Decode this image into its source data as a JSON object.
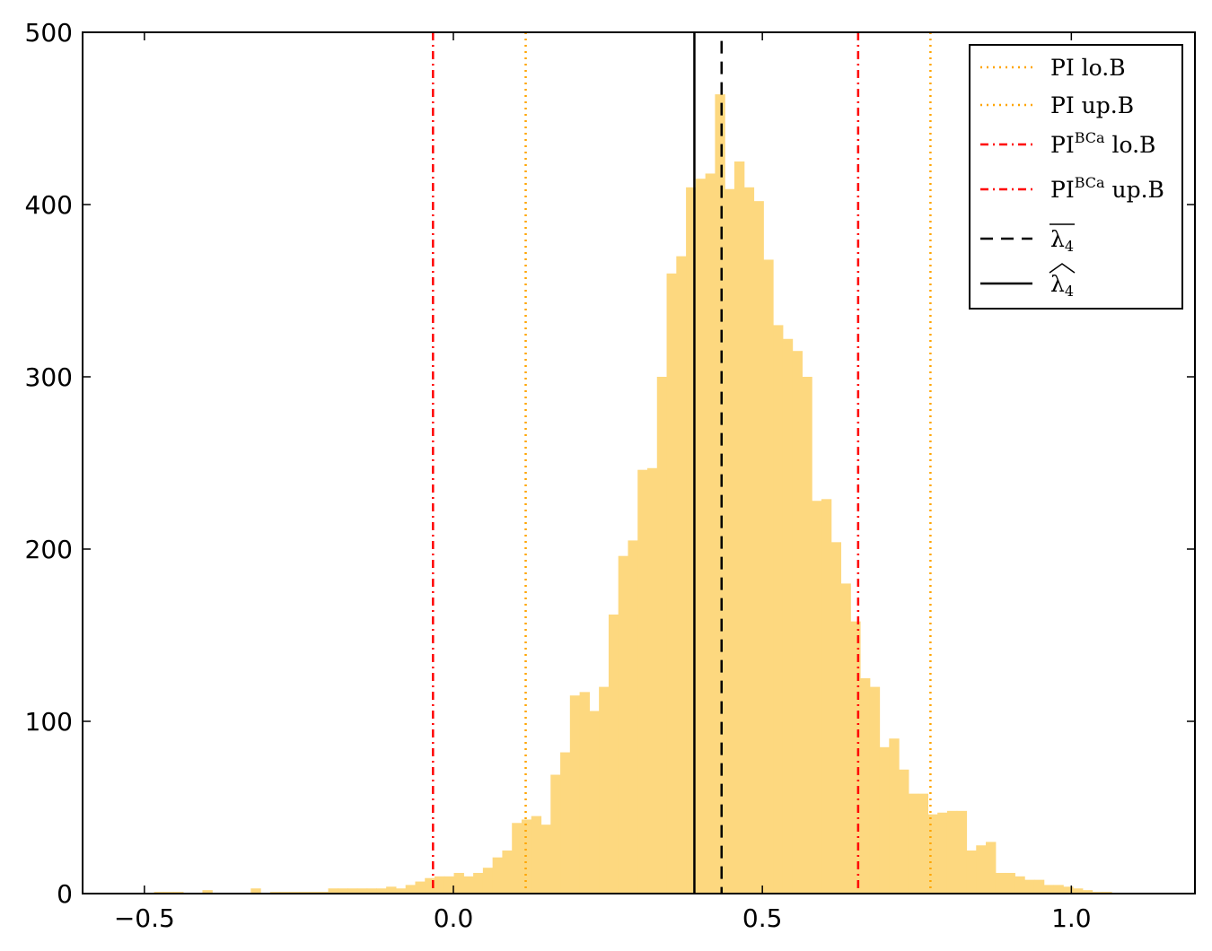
{
  "chart_data": {
    "type": "bar",
    "title": "",
    "xlabel": "",
    "ylabel": "",
    "xlim": [
      -0.6,
      1.2
    ],
    "ylim": [
      0,
      500
    ],
    "x_ticks": [
      -0.5,
      0.0,
      0.5,
      1.0
    ],
    "x_tick_labels": [
      "−0.5",
      "0.0",
      "0.5",
      "1.0"
    ],
    "y_ticks": [
      0,
      100,
      200,
      300,
      400,
      500
    ],
    "y_tick_labels": [
      "0",
      "100",
      "200",
      "300",
      "400",
      "500"
    ],
    "bar_color": "#fdd87f",
    "histogram": {
      "bin_start": -0.5,
      "bin_width": 0.01565,
      "values": [
        0,
        1,
        1,
        1,
        0,
        0,
        2,
        0,
        0,
        0,
        0,
        3,
        0,
        1,
        1,
        1,
        1,
        1,
        1,
        3,
        3,
        3,
        3,
        3,
        3,
        4,
        3,
        5,
        7,
        9,
        10,
        10,
        12,
        10,
        12,
        15,
        21,
        25,
        41,
        43,
        45,
        40,
        69,
        82,
        115,
        117,
        106,
        120,
        162,
        196,
        205,
        246,
        247,
        300,
        360,
        370,
        410,
        415,
        418,
        464,
        409,
        425,
        410,
        402,
        368,
        330,
        322,
        315,
        300,
        228,
        229,
        204,
        180,
        158,
        125,
        120,
        85,
        90,
        72,
        58,
        58,
        46,
        47,
        48,
        48,
        25,
        28,
        30,
        12,
        12,
        10,
        8,
        8,
        5,
        5,
        4,
        3,
        2,
        1,
        1,
        0,
        0
      ]
    },
    "vlines": [
      {
        "name": "PI lo.B",
        "x": 0.117,
        "color": "#ffa500",
        "style": "dotted"
      },
      {
        "name": "PI up.B",
        "x": 0.772,
        "color": "#ffa500",
        "style": "dotted"
      },
      {
        "name": "PI^BCa lo.B",
        "x": -0.033,
        "color": "#ff0000",
        "style": "dashdot"
      },
      {
        "name": "PI^BCa up.B",
        "x": 0.655,
        "color": "#ff0000",
        "style": "dashdot"
      },
      {
        "name": "mean lambda_4",
        "x": 0.434,
        "color": "#000000",
        "style": "dashed",
        "ymax": 495
      },
      {
        "name": "hat lambda_4",
        "x": 0.39,
        "color": "#000000",
        "style": "solid"
      }
    ],
    "legend": {
      "placement": "top-right",
      "entries": [
        {
          "label": "PI lo.B",
          "main": "PI lo.B",
          "sup": "",
          "tail": "",
          "color": "#ffa500",
          "style": "dotted"
        },
        {
          "label": "PI up.B",
          "main": "PI up.B",
          "sup": "",
          "tail": "",
          "color": "#ffa500",
          "style": "dotted"
        },
        {
          "label": "PI^BCa lo.B",
          "main": "PI",
          "sup": "BCa",
          "tail": " lo.B",
          "color": "#ff0000",
          "style": "dashdot"
        },
        {
          "label": "PI^BCa up.B",
          "main": "PI",
          "sup": "BCa",
          "tail": " up.B",
          "color": "#ff0000",
          "style": "dashdot"
        },
        {
          "label": "overline lambda_4",
          "main": "λ",
          "sub": "4",
          "accent": "bar",
          "color": "#000000",
          "style": "dashed"
        },
        {
          "label": "widehat lambda_4",
          "main": "λ",
          "sub": "4",
          "accent": "hat",
          "color": "#000000",
          "style": "solid"
        }
      ]
    }
  }
}
